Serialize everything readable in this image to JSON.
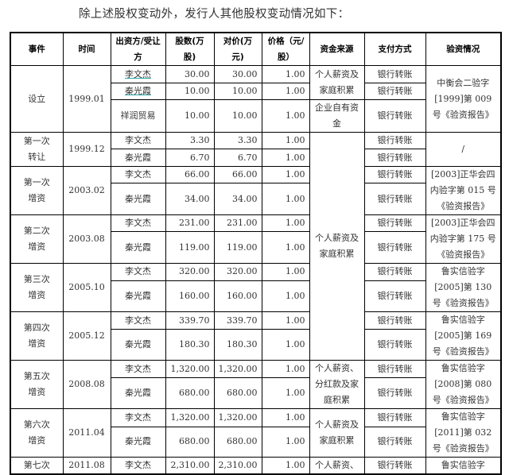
{
  "intro": "除上述股权变动外，发行人其他股权变动情况如下：",
  "colors": {
    "link_underline": "#2aa6a6",
    "border": "#000000"
  },
  "headers": [
    "事件",
    "时间",
    "出资方/受让方",
    "股数(万股)",
    "对价(万元)",
    "价格（元/股）",
    "资金来源",
    "支付方式",
    "验资情况"
  ],
  "events": [
    {
      "event": "设立",
      "time": "1999.01",
      "verification": "中衡会二验字[1999]第 009 号《验资报告》",
      "rows": [
        {
          "party": "李文杰",
          "shares": "30.00",
          "consideration": "30.00",
          "price": "1.00",
          "payment": "银行转账"
        },
        {
          "party": "秦光霞",
          "shares": "10.00",
          "consideration": "10.00",
          "price": "1.00",
          "payment": "银行转账"
        },
        {
          "party": "祥润贸易",
          "shares": "10.00",
          "consideration": "10.00",
          "price": "1.00",
          "payment": "银行转账"
        }
      ]
    },
    {
      "event": "第一次转让",
      "time": "1999.12",
      "verification": "/",
      "rows": [
        {
          "party": "李文杰",
          "shares": "3.30",
          "consideration": "3.30",
          "price": "1.00",
          "payment": "银行转账"
        },
        {
          "party": "秦光霞",
          "shares": "6.70",
          "consideration": "6.70",
          "price": "1.00",
          "payment": "银行转账"
        }
      ]
    },
    {
      "event": "第一次增资",
      "time": "2003.02",
      "verification": "[2003]正华会四内验字第 015 号《验资报告》",
      "rows": [
        {
          "party": "李文杰",
          "shares": "66.00",
          "consideration": "66.00",
          "price": "1.00",
          "payment": "银行转账"
        },
        {
          "party": "秦光霞",
          "shares": "34.00",
          "consideration": "34.00",
          "price": "1.00",
          "payment": "银行转账"
        }
      ]
    },
    {
      "event": "第二次增资",
      "time": "2003.08",
      "verification": "[2003]正华会四内验字第 175 号《验资报告》",
      "rows": [
        {
          "party": "李文杰",
          "shares": "231.00",
          "consideration": "231.00",
          "price": "1.00",
          "payment": "银行转账"
        },
        {
          "party": "秦光霞",
          "shares": "119.00",
          "consideration": "119.00",
          "price": "1.00",
          "payment": "银行转账"
        }
      ]
    },
    {
      "event": "第三次增资",
      "time": "2005.10",
      "verification": "鲁实信验字[2005]第 130 号《验资报告》",
      "rows": [
        {
          "party": "李文杰",
          "shares": "320.00",
          "consideration": "320.00",
          "price": "1.00",
          "payment": "银行转账"
        },
        {
          "party": "秦光霞",
          "shares": "160.00",
          "consideration": "160.00",
          "price": "1.00",
          "payment": "银行转账"
        }
      ]
    },
    {
      "event": "第四次增资",
      "time": "2005.12",
      "verification": "鲁实信验字[2005]第 169 号《验资报告》",
      "rows": [
        {
          "party": "李文杰",
          "shares": "339.70",
          "consideration": "339.70",
          "price": "1.00",
          "payment": "银行转账"
        },
        {
          "party": "秦光霞",
          "shares": "180.30",
          "consideration": "180.30",
          "price": "1.00",
          "payment": "银行转账"
        }
      ]
    },
    {
      "event": "第五次增资",
      "time": "2008.08",
      "verification": "鲁实信验字[2008]第 080 号《验资报告》",
      "rows": [
        {
          "party": "李文杰",
          "shares": "1,320.00",
          "consideration": "1,320.00",
          "price": "1.00",
          "payment": "银行转账"
        },
        {
          "party": "秦光霞",
          "shares": "680.00",
          "consideration": "680.00",
          "price": "1.00",
          "payment": "银行转账"
        }
      ]
    },
    {
      "event": "第六次增资",
      "time": "2011.04",
      "verification": "鲁实信验字[2011]第 032 号《验资报告》",
      "rows": [
        {
          "party": "李文杰",
          "shares": "1,320.00",
          "consideration": "1,320.00",
          "price": "1.00",
          "payment": "银行转账"
        },
        {
          "party": "秦光霞",
          "shares": "680.00",
          "consideration": "680.00",
          "price": "1.00",
          "payment": "银行转账"
        }
      ]
    },
    {
      "event": "第七次",
      "time": "2011.08",
      "verification": "鲁实信验字",
      "rows": [
        {
          "party": "李文杰",
          "shares": "2,310.00",
          "consideration": "2,310.00",
          "price": "1.00",
          "payment": "银行转账"
        }
      ]
    }
  ],
  "funding_sources": [
    "个人薪资及家庭积累",
    "企业自有资金",
    "个人薪资及家庭积累",
    "个人薪资、分红款及家庭积累",
    "个人薪资及家庭积累",
    "个人薪资、"
  ]
}
